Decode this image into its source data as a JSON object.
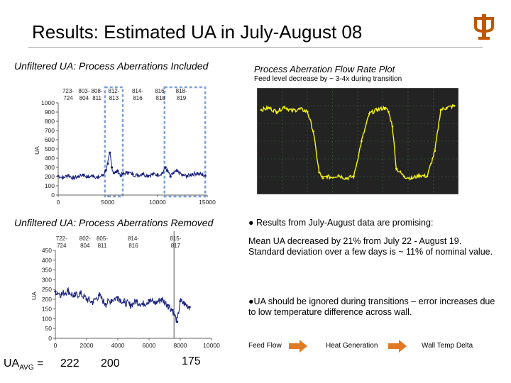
{
  "slide": {
    "title": "Results: Estimated UA in July-August 08",
    "logo_letter": "UT",
    "accent_color": "#BF5700"
  },
  "sections": {
    "top_left": "Unfiltered UA: Process Aberrations Included",
    "top_right": "Process Aberration Flow Rate Plot",
    "top_right_note": "Feed level decrease by ~ 3-4x during transition",
    "bottom_left": "Unfiltered UA: Process Aberrations Removed"
  },
  "bullets": {
    "b1": "● Results from July-August data are promising:",
    "b1_detail": "Mean UA decreased by 21% from July 22 - August 19. Standard deviation over a few days is ~ 11% of nominal value.",
    "b2": "●UA should be ignored during transitions – error increases due to low temperature difference across wall."
  },
  "flow": {
    "item1": "Feed Flow",
    "item2": "Heat Generation",
    "item3": "Wall Temp Delta",
    "arrow_color": "#E07B24"
  },
  "ua_avg": {
    "label_main": "UA",
    "label_sub": "AVG",
    "label_eq": " =",
    "v1": "222",
    "v2": "200",
    "v3": "175"
  },
  "chart_data": [
    {
      "type": "line",
      "title": "Unfiltered UA: Process Aberrations Included",
      "xlabel": "",
      "ylabel": "UA",
      "xlim": [
        0,
        15000
      ],
      "ylim": [
        0,
        1000
      ],
      "x_ticks": [
        0,
        5000,
        10000,
        15000
      ],
      "x_tick_labels": [
        "0",
        "5000",
        "10000",
        "15000"
      ],
      "y_ticks": [
        0,
        100,
        200,
        300,
        400,
        500,
        600,
        700,
        800,
        900,
        1000
      ],
      "y_tick_labels": [
        "0",
        "100",
        "200",
        "300",
        "400",
        "500",
        "600",
        "700",
        "800",
        "900",
        "1000"
      ],
      "date_labels": [
        {
          "x": 1000,
          "text": "723-724"
        },
        {
          "x": 2600,
          "text": "803-804"
        },
        {
          "x": 3900,
          "text": "808-811"
        },
        {
          "x": 5600,
          "text": "812-813"
        },
        {
          "x": 8000,
          "text": "814-816"
        },
        {
          "x": 10300,
          "text": "816-818"
        },
        {
          "x": 12400,
          "text": "818-819"
        }
      ],
      "highlight_ranges": [
        [
          4700,
          6500
        ],
        [
          10700,
          14800
        ]
      ],
      "series": [
        {
          "name": "UA",
          "color": "#1a237e",
          "x": [
            0,
            500,
            1000,
            1500,
            2000,
            2500,
            3000,
            3500,
            4000,
            4500,
            4800,
            5000,
            5200,
            5400,
            5600,
            5800,
            6000,
            6300,
            6500,
            7000,
            7500,
            8000,
            8500,
            9000,
            9500,
            10000,
            10500,
            10800,
            11000,
            11300,
            11600,
            12000,
            12500,
            13000,
            13500,
            14000,
            14500,
            14800
          ],
          "y": [
            205,
            190,
            215,
            185,
            200,
            220,
            195,
            210,
            190,
            215,
            270,
            340,
            460,
            300,
            240,
            250,
            260,
            210,
            230,
            245,
            225,
            215,
            230,
            210,
            225,
            220,
            240,
            300,
            260,
            200,
            240,
            260,
            215,
            205,
            225,
            235,
            220,
            210
          ]
        }
      ]
    },
    {
      "type": "line",
      "title": "Process Aberration Flow Rate Plot",
      "background": "#232323",
      "grid_color": "#3c6a3c",
      "ylim": [
        0,
        1
      ],
      "series": [
        {
          "name": "Feed flow",
          "color": "#f5f518",
          "x": [
            0,
            0.04,
            0.08,
            0.12,
            0.16,
            0.2,
            0.24,
            0.27,
            0.3,
            0.32,
            0.34,
            0.36,
            0.4,
            0.44,
            0.48,
            0.52,
            0.56,
            0.6,
            0.64,
            0.66,
            0.68,
            0.7,
            0.74,
            0.78,
            0.82,
            0.86,
            0.9,
            0.93,
            0.96,
            1.0
          ],
          "y": [
            0.82,
            0.84,
            0.8,
            0.85,
            0.81,
            0.83,
            0.8,
            0.6,
            0.18,
            0.12,
            0.14,
            0.13,
            0.15,
            0.12,
            0.14,
            0.5,
            0.78,
            0.82,
            0.84,
            0.8,
            0.65,
            0.22,
            0.14,
            0.12,
            0.15,
            0.14,
            0.4,
            0.82,
            0.84,
            0.86
          ]
        }
      ]
    },
    {
      "type": "line",
      "title": "Unfiltered UA: Process Aberrations Removed",
      "xlabel": "",
      "ylabel": "UA",
      "xlim": [
        0,
        10000
      ],
      "ylim": [
        0,
        450
      ],
      "x_ticks": [
        0,
        2000,
        4000,
        6000,
        8000,
        10000
      ],
      "x_tick_labels": [
        "0",
        "2000",
        "4000",
        "6000",
        "8000",
        "10000"
      ],
      "y_ticks": [
        0,
        50,
        100,
        150,
        200,
        250,
        300,
        350,
        400,
        450
      ],
      "y_tick_labels": [
        "0",
        "50",
        "100",
        "150",
        "200",
        "250",
        "300",
        "350",
        "400",
        "450"
      ],
      "date_labels": [
        {
          "x": 400,
          "text": "722-724"
        },
        {
          "x": 1900,
          "text": "802-804"
        },
        {
          "x": 3000,
          "text": "805-811"
        },
        {
          "x": 5000,
          "text": "814-816"
        },
        {
          "x": 7700,
          "text": "815-817"
        }
      ],
      "separator_x": 7600,
      "series": [
        {
          "name": "UA",
          "color": "#1a237e",
          "x": [
            0,
            400,
            800,
            1200,
            1600,
            2000,
            2400,
            2800,
            3200,
            3600,
            4000,
            4400,
            4800,
            5200,
            5600,
            6000,
            6400,
            6800,
            7200,
            7500,
            7800,
            8000,
            8300,
            8600
          ],
          "y": [
            240,
            225,
            245,
            215,
            230,
            200,
            185,
            220,
            175,
            195,
            210,
            185,
            170,
            190,
            175,
            195,
            180,
            200,
            170,
            145,
            85,
            190,
            175,
            160
          ]
        }
      ]
    }
  ]
}
